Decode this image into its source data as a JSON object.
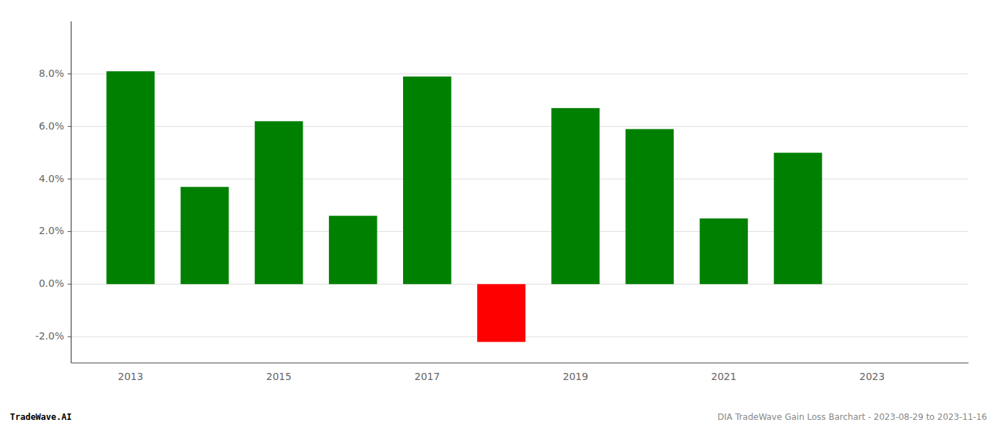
{
  "chart_data": {
    "type": "bar",
    "x": [
      2013,
      2014,
      2015,
      2016,
      2017,
      2018,
      2019,
      2020,
      2021,
      2022,
      2023
    ],
    "values": [
      0.081,
      0.037,
      0.062,
      0.026,
      0.079,
      -0.022,
      0.067,
      0.059,
      0.025,
      0.05,
      null
    ],
    "colors": [
      "#008000",
      "#008000",
      "#008000",
      "#008000",
      "#008000",
      "#ff0000",
      "#008000",
      "#008000",
      "#008000",
      "#008000",
      "#008000"
    ],
    "xlim": [
      2012.2,
      2024.3
    ],
    "xticks": [
      2013,
      2015,
      2017,
      2019,
      2021,
      2023
    ],
    "ylim": [
      -0.03,
      0.1
    ],
    "yticks": [
      {
        "value": -0.02,
        "label": "-2.0%"
      },
      {
        "value": 0.0,
        "label": "0.0%"
      },
      {
        "value": 0.02,
        "label": "2.0%"
      },
      {
        "value": 0.04,
        "label": "4.0%"
      },
      {
        "value": 0.06,
        "label": "6.0%"
      },
      {
        "value": 0.08,
        "label": "8.0%"
      }
    ],
    "grid": true,
    "annotations": [
      "TradeWave.AI",
      "DIA TradeWave Gain Loss Barchart - 2023-08-29 to 2023-11-16"
    ]
  }
}
